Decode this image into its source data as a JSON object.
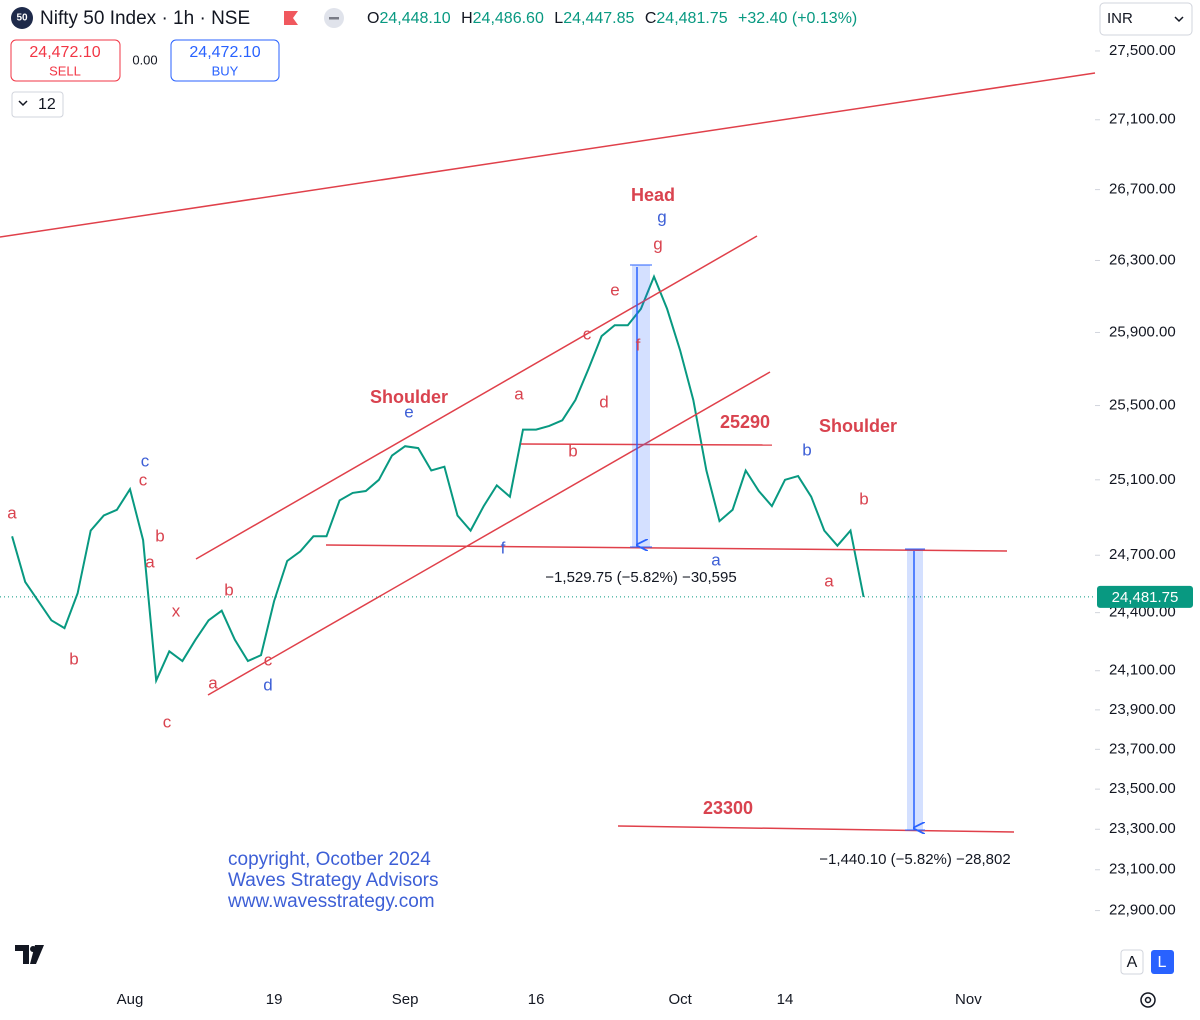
{
  "header": {
    "badge": "50",
    "symbol": "Nifty 50 Index · 1h · NSE",
    "ohlc": [
      {
        "key": "O",
        "value": "24,448.10"
      },
      {
        "key": "H",
        "value": "24,486.60"
      },
      {
        "key": "L",
        "value": "24,447.85"
      },
      {
        "key": "C",
        "value": "24,481.75"
      }
    ],
    "change": "+32.40 (+0.13%)"
  },
  "trade": {
    "sell_price": "24,472.10",
    "sell": "SELL",
    "spread": "0.00",
    "buy_price": "24,472.10",
    "buy": "BUY"
  },
  "interval_menu": "12",
  "currency": "INR",
  "scale_buttons": [
    "A",
    "L"
  ],
  "chart_data": {
    "type": "line",
    "color": "#089981",
    "log_scale": true,
    "categories": [
      null,
      null,
      null,
      null,
      null,
      null,
      null,
      null,
      null,
      "Aug",
      null,
      null,
      null,
      null,
      null,
      null,
      null,
      null,
      null,
      null,
      "19",
      null,
      null,
      null,
      null,
      null,
      null,
      null,
      null,
      null,
      "Sep",
      null,
      null,
      null,
      null,
      null,
      null,
      null,
      null,
      null,
      "16",
      null,
      null,
      null,
      null,
      null,
      null,
      null,
      null,
      null,
      null,
      "Oct",
      null,
      null,
      null,
      null,
      null,
      null,
      null,
      "14",
      null,
      null,
      null,
      null,
      null,
      null,
      null,
      null,
      null,
      null,
      null,
      null,
      null,
      "Nov",
      null,
      null,
      null,
      null,
      null,
      null,
      null,
      null,
      null
    ],
    "values": [
      24800,
      24560,
      24460,
      24360,
      24320,
      24500,
      24830,
      24910,
      24940,
      25050,
      24780,
      24050,
      24200,
      24150,
      24260,
      24360,
      24410,
      24260,
      24150,
      24180,
      24460,
      24670,
      24720,
      24800,
      24800,
      24990,
      25030,
      25040,
      25100,
      25230,
      25280,
      25270,
      25150,
      25170,
      24910,
      24830,
      24960,
      25070,
      25010,
      25370,
      25370,
      25390,
      25420,
      25530,
      25700,
      25880,
      25940,
      25940,
      26030,
      26210,
      26030,
      25800,
      25530,
      25150,
      24880,
      24940,
      25150,
      25040,
      24960,
      25100,
      25120,
      25010,
      24830,
      24750,
      24830,
      24481.75,
      null,
      null,
      null,
      null,
      null,
      null,
      null,
      null,
      null,
      null,
      null,
      null,
      null,
      null,
      null,
      null,
      null
    ],
    "ylim": [
      22540,
      27800
    ],
    "yticks": [
      {
        "value": 27500,
        "label": "27,500.00"
      },
      {
        "value": 27100,
        "label": "27,100.00"
      },
      {
        "value": 26700,
        "label": "26,700.00"
      },
      {
        "value": 26300,
        "label": "26,300.00"
      },
      {
        "value": 25900,
        "label": "25,900.00"
      },
      {
        "value": 25500,
        "label": "25,500.00"
      },
      {
        "value": 25100,
        "label": "25,100.00"
      },
      {
        "value": 24700,
        "label": "24,700.00"
      },
      {
        "value": 24400,
        "label": "24,400.00"
      },
      {
        "value": 24100,
        "label": "24,100.00"
      },
      {
        "value": 23900,
        "label": "23,900.00"
      },
      {
        "value": 23700,
        "label": "23,700.00"
      },
      {
        "value": 23500,
        "label": "23,500.00"
      },
      {
        "value": 23300,
        "label": "23,300.00"
      },
      {
        "value": 23100,
        "label": "23,100.00"
      },
      {
        "value": 22900,
        "label": "22,900.00"
      }
    ],
    "last_price": {
      "value": 24481.75,
      "label": "24,481.75"
    },
    "annotations": [
      {
        "text": "a",
        "color": "#d9434f"
      },
      {
        "text": "b",
        "color": "#d9434f"
      },
      {
        "text": "c",
        "color": "#3d5fd6"
      },
      {
        "text": "c",
        "color": "#d9434f"
      },
      {
        "text": "b",
        "color": "#d9434f"
      },
      {
        "text": "a",
        "color": "#d9434f"
      },
      {
        "text": "x",
        "color": "#d9434f"
      },
      {
        "text": "c",
        "color": "#d9434f"
      },
      {
        "text": "b",
        "color": "#d9434f"
      },
      {
        "text": "a",
        "color": "#d9434f"
      },
      {
        "text": "c",
        "color": "#d9434f"
      },
      {
        "text": "d",
        "color": "#3d5fd6"
      },
      {
        "text": "Shoulder",
        "color": "#d9434f"
      },
      {
        "text": "e",
        "color": "#3d5fd6"
      },
      {
        "text": "a",
        "color": "#d9434f"
      },
      {
        "text": "b",
        "color": "#d9434f"
      },
      {
        "text": "f",
        "color": "#3d5fd6"
      },
      {
        "text": "c",
        "color": "#d9434f"
      },
      {
        "text": "d",
        "color": "#d9434f"
      },
      {
        "text": "e",
        "color": "#d9434f"
      },
      {
        "text": "f",
        "color": "#d9434f"
      },
      {
        "text": "Head",
        "color": "#d9434f"
      },
      {
        "text": "g",
        "color": "#3d5fd6"
      },
      {
        "text": "g",
        "color": "#d9434f"
      },
      {
        "text": "25290",
        "color": "#d9434f"
      },
      {
        "text": "Shoulder",
        "color": "#d9434f"
      },
      {
        "text": "b",
        "color": "#3d5fd6"
      },
      {
        "text": "a",
        "color": "#3d5fd6"
      },
      {
        "text": "a",
        "color": "#d9434f"
      },
      {
        "text": "b",
        "color": "#d9434f"
      },
      {
        "text": "23300",
        "color": "#d9434f"
      }
    ],
    "measurements": [
      "−1,529.75 (−5.82%) −30,595",
      "−1,440.10 (−5.82%) −28,802"
    ],
    "watermark": [
      "copyright, Ocotber 2024",
      "Waves Strategy Advisors",
      "www.wavesstrategy.com"
    ]
  }
}
